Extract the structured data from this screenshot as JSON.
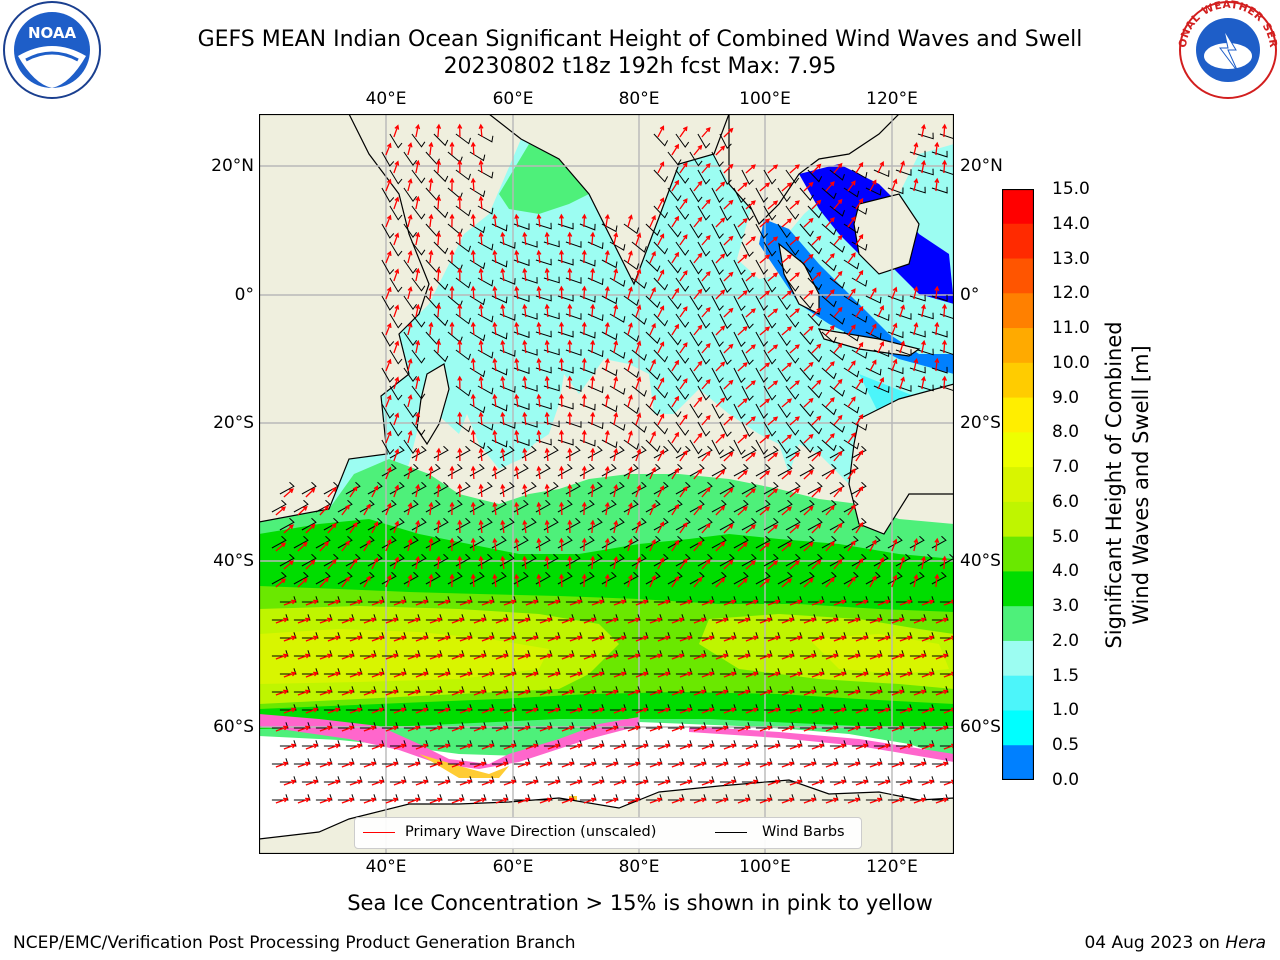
{
  "header": {
    "title_line1": "GEFS MEAN Indian Ocean Significant Height of Combined Wind Waves and Swell",
    "title_line2": "20230802 t18z 192h fcst   Max: 7.95"
  },
  "logos": {
    "left": {
      "icon": "noaa-logo-icon",
      "text": "NOAA"
    },
    "right": {
      "icon": "national-weather-service-logo-icon",
      "text": "NATIONAL WEATHER SERVICE"
    }
  },
  "axes": {
    "lon_ticks": [
      "40°E",
      "60°E",
      "80°E",
      "100°E",
      "120°E"
    ],
    "lat_ticks": [
      "20°N",
      "0°",
      "20°S",
      "40°S",
      "60°S"
    ]
  },
  "colorbar": {
    "title_line1": "Significant Height of Combined",
    "title_line2": "Wind Waves and Swell [m]",
    "labels": [
      "15.0",
      "14.0",
      "13.0",
      "12.0",
      "11.0",
      "10.0",
      "9.0",
      "8.0",
      "7.0",
      "6.0",
      "5.0",
      "4.0",
      "3.0",
      "2.0",
      "1.5",
      "1.0",
      "0.5",
      "0.0"
    ],
    "colors": [
      "#ff0000",
      "#ff2a00",
      "#ff5500",
      "#ff8000",
      "#ffaa00",
      "#ffcc00",
      "#ffee00",
      "#eeff00",
      "#d8f500",
      "#bff500",
      "#6ae800",
      "#00dd00",
      "#4ef07a",
      "#9cfdf2",
      "#4cf5fa",
      "#00ffff",
      "#0080ff",
      "#0000ff"
    ]
  },
  "legend": {
    "primary_wave": {
      "label": "Primary Wave Direction (unscaled)",
      "color": "#ff0000"
    },
    "wind_barbs": {
      "label": "Wind Barbs",
      "color": "#000000"
    }
  },
  "map_colors": {
    "land": "#efefde",
    "ice_white": "#ffffff",
    "ice_pink": "#ff66cc",
    "ice_yellow": "#ffcc33"
  },
  "caption": "Sea Ice Concentration > 15% is shown in pink to yellow",
  "footer": {
    "credit": "NCEP/EMC/Verification Post Processing Product Generation Branch",
    "date_prefix": "04 Aug 2023 on ",
    "machine": "Hera"
  }
}
